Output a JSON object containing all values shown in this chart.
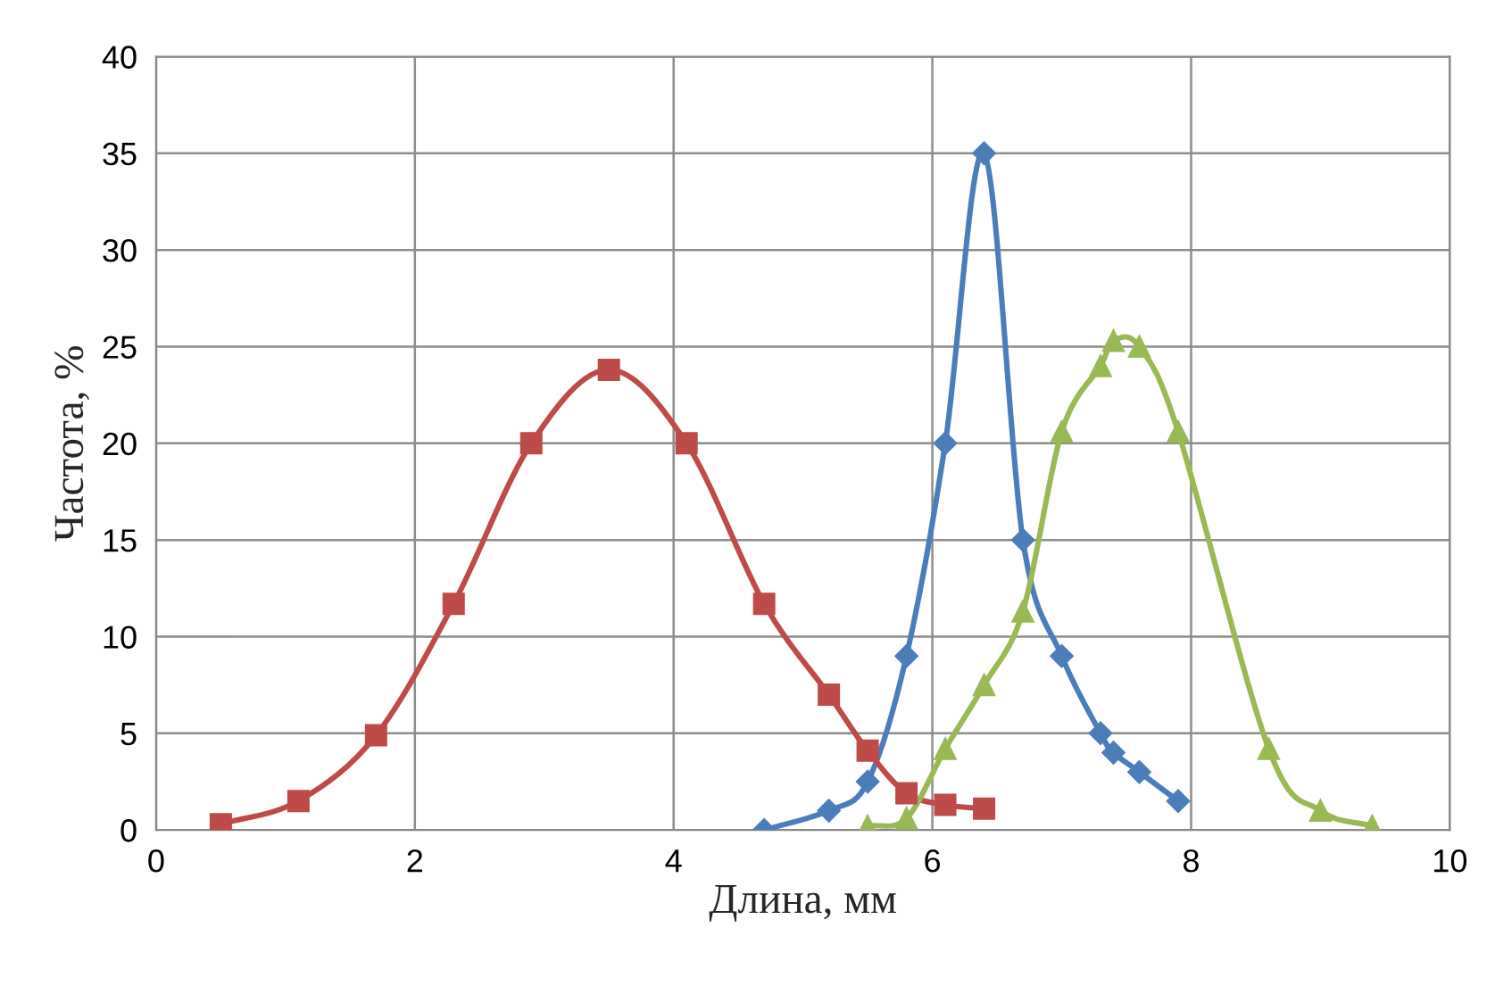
{
  "chart_data": {
    "type": "line",
    "xlabel": "Длина, мм",
    "ylabel": "Частота, %",
    "xlim": [
      0,
      10
    ],
    "ylim": [
      0,
      40
    ],
    "xticks": [
      0,
      2,
      4,
      6,
      8,
      10
    ],
    "yticks": [
      0,
      5,
      10,
      15,
      20,
      25,
      30,
      35,
      40
    ],
    "grid": true,
    "legend": false,
    "series": [
      {
        "color": "#4a7ebb",
        "marker": "diamond",
        "x": [
          4.7,
          5.2,
          5.5,
          5.8,
          6.1,
          6.4,
          6.7,
          7.0,
          7.3,
          7.4,
          7.6,
          7.9
        ],
        "values": [
          0,
          1,
          2.5,
          9,
          20,
          35,
          15,
          9,
          5,
          4,
          3,
          1.5
        ]
      },
      {
        "color": "#be4b48",
        "marker": "square",
        "x": [
          0.5,
          1.1,
          1.7,
          2.3,
          2.9,
          3.5,
          4.1,
          4.7,
          5.2,
          5.5,
          5.8,
          6.1,
          6.4
        ],
        "values": [
          0.3,
          1.5,
          4.9,
          11.7,
          20,
          23.8,
          20,
          11.7,
          7,
          4.1,
          1.9,
          1.3,
          1.1
        ]
      },
      {
        "color": "#98b954",
        "marker": "triangle",
        "x": [
          5.5,
          5.8,
          6.1,
          6.4,
          6.7,
          7.0,
          7.3,
          7.4,
          7.6,
          7.9,
          8.6,
          9.0,
          9.4
        ],
        "values": [
          0.2,
          0.6,
          4.2,
          7.5,
          11.3,
          20.6,
          24,
          25.3,
          25,
          20.6,
          4.2,
          1,
          0.2
        ]
      }
    ]
  }
}
